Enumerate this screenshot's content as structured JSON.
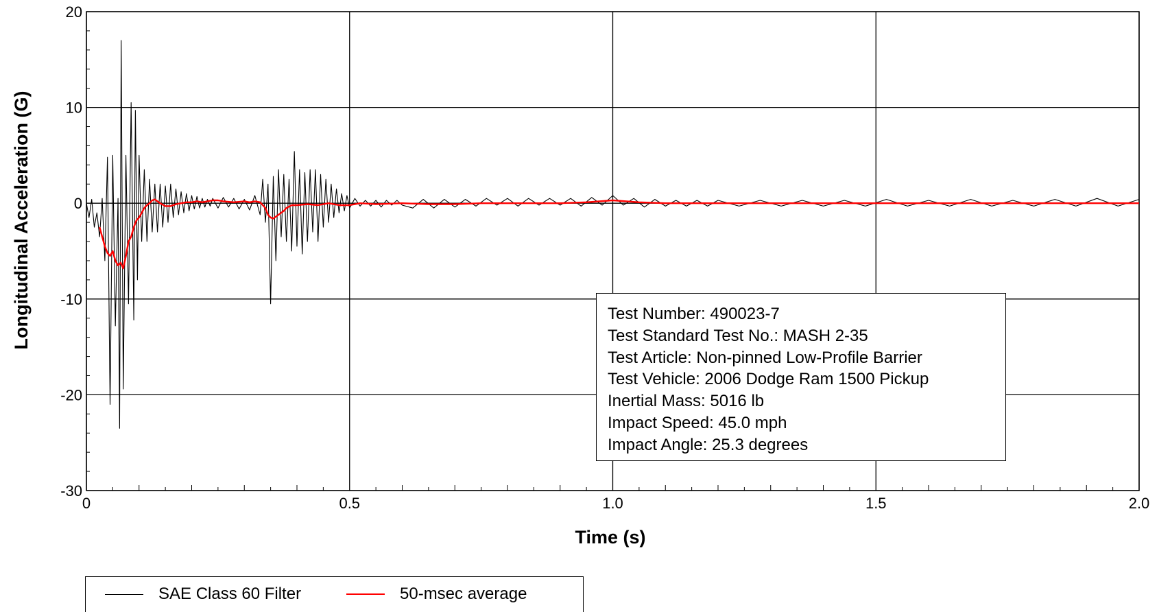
{
  "chart_data": {
    "type": "line",
    "xlabel": "Time (s)",
    "ylabel": "Longitudinal Acceleration (G)",
    "xlim": [
      0,
      2.0
    ],
    "ylim": [
      -30,
      20
    ],
    "x_ticks": [
      0,
      0.5,
      1.0,
      1.5,
      2.0
    ],
    "x_tick_labels": [
      "0",
      "0.5",
      "1.0",
      "1.5",
      "2.0"
    ],
    "y_ticks": [
      20,
      10,
      0,
      -10,
      -20,
      -30
    ],
    "y_tick_labels": [
      "20",
      "10",
      "0",
      "-10",
      "-20",
      "-30"
    ],
    "grid": true,
    "legend_position": "bottom-left",
    "series": [
      {
        "name": "SAE Class 60 Filter",
        "color": "#000000",
        "x": [
          0,
          0.005,
          0.01,
          0.015,
          0.02,
          0.025,
          0.03,
          0.035,
          0.04,
          0.045,
          0.05,
          0.055,
          0.06,
          0.063,
          0.066,
          0.07,
          0.075,
          0.08,
          0.085,
          0.09,
          0.093,
          0.097,
          0.1,
          0.105,
          0.11,
          0.115,
          0.12,
          0.125,
          0.13,
          0.135,
          0.14,
          0.145,
          0.15,
          0.155,
          0.16,
          0.165,
          0.17,
          0.175,
          0.18,
          0.185,
          0.19,
          0.195,
          0.2,
          0.205,
          0.21,
          0.215,
          0.22,
          0.225,
          0.23,
          0.235,
          0.24,
          0.25,
          0.26,
          0.27,
          0.28,
          0.29,
          0.3,
          0.31,
          0.32,
          0.33,
          0.335,
          0.34,
          0.345,
          0.35,
          0.355,
          0.36,
          0.365,
          0.37,
          0.375,
          0.38,
          0.385,
          0.39,
          0.395,
          0.4,
          0.405,
          0.41,
          0.415,
          0.42,
          0.425,
          0.43,
          0.435,
          0.44,
          0.445,
          0.45,
          0.455,
          0.46,
          0.465,
          0.47,
          0.475,
          0.48,
          0.485,
          0.49,
          0.495,
          0.5,
          0.51,
          0.52,
          0.53,
          0.54,
          0.55,
          0.56,
          0.57,
          0.58,
          0.59,
          0.6,
          0.62,
          0.64,
          0.66,
          0.68,
          0.7,
          0.72,
          0.74,
          0.76,
          0.78,
          0.8,
          0.82,
          0.84,
          0.86,
          0.88,
          0.9,
          0.92,
          0.94,
          0.96,
          0.98,
          1.0,
          1.02,
          1.04,
          1.06,
          1.08,
          1.1,
          1.12,
          1.14,
          1.16,
          1.18,
          1.2,
          1.24,
          1.28,
          1.32,
          1.36,
          1.4,
          1.44,
          1.48,
          1.52,
          1.56,
          1.6,
          1.64,
          1.68,
          1.72,
          1.76,
          1.8,
          1.84,
          1.88,
          1.92,
          1.96,
          2.0
        ],
        "values": [
          0,
          -1.5,
          0.4,
          -2.5,
          -1,
          -3.5,
          0.5,
          -6,
          4.8,
          -21,
          5,
          -12.8,
          0.5,
          -23.5,
          17,
          -19.4,
          5,
          -10.5,
          10.5,
          -12.2,
          9.7,
          -8,
          5,
          -4,
          3.5,
          -4,
          2.5,
          -3,
          2,
          -3,
          2,
          -2.5,
          1.8,
          -2,
          2,
          -1.5,
          1.5,
          -1.2,
          1.2,
          -1,
          1,
          -0.8,
          0.8,
          -0.6,
          0.7,
          -0.5,
          0.5,
          -0.4,
          0.4,
          -0.3,
          0.5,
          -0.5,
          0.6,
          -0.4,
          0.5,
          -0.6,
          0.4,
          -0.7,
          0.8,
          -1.2,
          2.5,
          -2,
          2,
          -10.5,
          2.8,
          -6,
          3.5,
          -3.5,
          3,
          -4,
          2.5,
          -5,
          5.4,
          -4.5,
          3.5,
          -5.3,
          3.2,
          -4,
          3.5,
          -3,
          3.5,
          -4,
          3,
          -2.5,
          2.5,
          -2,
          2,
          -1.5,
          1.5,
          -1,
          1,
          -0.8,
          0.8,
          -0.5,
          0.5,
          -0.3,
          0.3,
          -0.3,
          0.3,
          -0.4,
          0.3,
          -0.2,
          0.3,
          -0.2,
          -0.5,
          0.4,
          -0.5,
          0.4,
          -0.4,
          0.4,
          -0.3,
          0.5,
          -0.2,
          0.5,
          -0.3,
          0.5,
          -0.2,
          0.5,
          -0.2,
          0.5,
          -0.3,
          0.6,
          -0.2,
          0.8,
          -0.2,
          0.5,
          -0.4,
          0.4,
          -0.3,
          0.3,
          -0.3,
          0.3,
          -0.3,
          0.3,
          -0.3,
          0.3,
          -0.3,
          0.3,
          -0.3,
          0.3,
          -0.3,
          0.4,
          -0.3,
          0.3,
          -0.3,
          0.4,
          -0.3,
          0.3,
          -0.3,
          0.4,
          -0.3,
          0.5,
          -0.3,
          0.4
        ]
      },
      {
        "name": "50-msec average",
        "color": "#ff0000",
        "x": [
          0.025,
          0.03,
          0.035,
          0.04,
          0.045,
          0.05,
          0.055,
          0.06,
          0.065,
          0.07,
          0.075,
          0.08,
          0.085,
          0.09,
          0.095,
          0.1,
          0.105,
          0.11,
          0.115,
          0.12,
          0.125,
          0.13,
          0.14,
          0.15,
          0.16,
          0.17,
          0.18,
          0.19,
          0.2,
          0.21,
          0.22,
          0.23,
          0.24,
          0.25,
          0.26,
          0.28,
          0.3,
          0.31,
          0.32,
          0.33,
          0.34,
          0.345,
          0.35,
          0.355,
          0.36,
          0.365,
          0.37,
          0.375,
          0.38,
          0.39,
          0.4,
          0.42,
          0.44,
          0.46,
          0.48,
          0.5,
          0.52,
          0.55,
          0.6,
          0.65,
          0.7,
          0.75,
          0.8,
          0.85,
          0.9,
          0.95,
          1.0,
          1.05,
          1.1,
          1.2,
          1.3,
          1.4,
          1.5,
          1.6,
          1.7,
          1.8,
          1.9,
          2.0
        ],
        "values": [
          -2.5,
          -3.5,
          -4.5,
          -5.2,
          -5.5,
          -5.0,
          -6.0,
          -6.5,
          -6.2,
          -6.8,
          -5.5,
          -4.0,
          -3.5,
          -2.5,
          -1.8,
          -1.5,
          -1.0,
          -0.5,
          -0.2,
          0.0,
          0.3,
          0.4,
          0.0,
          -0.3,
          -0.3,
          -0.1,
          0.0,
          0.1,
          0.1,
          0.2,
          0.1,
          0.2,
          0.3,
          0.3,
          0.2,
          0.1,
          0.2,
          0.1,
          0.2,
          0.1,
          -0.5,
          -1.2,
          -1.5,
          -1.6,
          -1.4,
          -1.2,
          -1.0,
          -0.8,
          -0.5,
          -0.2,
          -0.2,
          -0.1,
          -0.2,
          0.0,
          -0.2,
          -0.2,
          0.0,
          -0.1,
          0.0,
          -0.1,
          -0.1,
          0.0,
          0.0,
          0.0,
          0.0,
          0.1,
          0.3,
          0.1,
          0.0,
          0.0,
          0.0,
          0.0,
          0.0,
          0.0,
          0.0,
          0.0,
          0.0,
          0.0
        ]
      }
    ],
    "annotation_lines": [
      "Test Number: 490023-7",
      "Test Standard Test No.: MASH 2-35",
      "Test Article: Non-pinned Low-Profile Barrier",
      "Test Vehicle: 2006 Dodge Ram 1500 Pickup",
      "Inertial Mass: 5016 lb",
      "Impact Speed: 45.0 mph",
      "Impact Angle: 25.3 degrees"
    ]
  }
}
